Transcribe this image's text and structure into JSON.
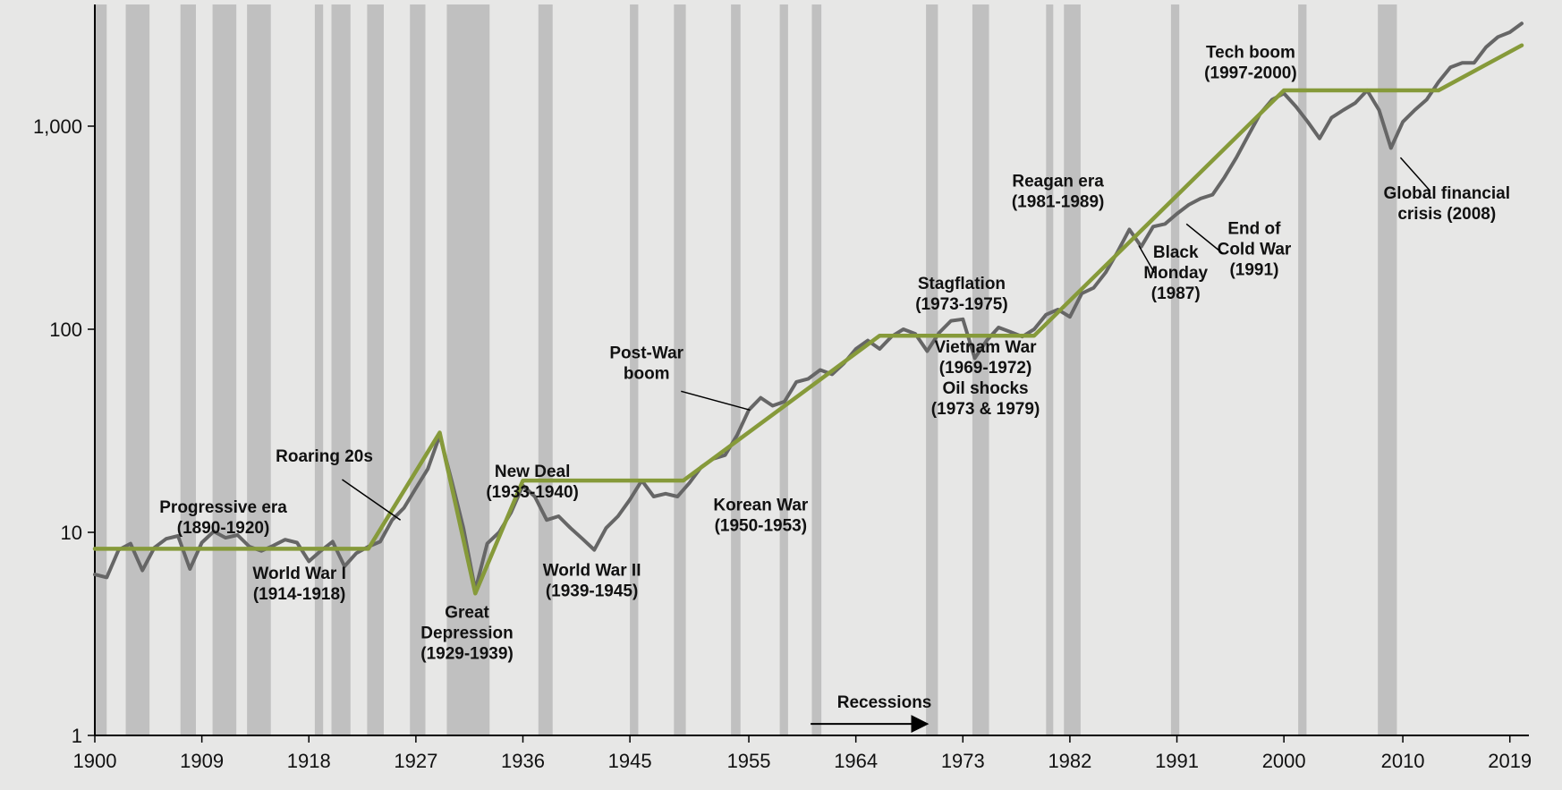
{
  "chart_data": {
    "type": "line",
    "title": "",
    "xlabel": "",
    "ylabel": "",
    "y_scale": "log",
    "ylim": [
      1,
      3500
    ],
    "xlim": [
      1900,
      2020
    ],
    "grid": false,
    "x_tick_labels": [
      "1900",
      "1909",
      "1918",
      "1927",
      "1936",
      "1945",
      "1955",
      "1964",
      "1973",
      "1982",
      "1991",
      "2000",
      "2010",
      "2019"
    ],
    "y_tick_labels": [
      {
        "value": 1,
        "label": "1"
      },
      {
        "value": 10,
        "label": "10"
      },
      {
        "value": 100,
        "label": "100"
      },
      {
        "value": 1000,
        "label": "1,000"
      }
    ],
    "recessions": [
      [
        1900.0,
        1901.0
      ],
      [
        1902.6,
        1904.6
      ],
      [
        1907.2,
        1908.5
      ],
      [
        1909.9,
        1911.9
      ],
      [
        1912.8,
        1914.8
      ],
      [
        1918.5,
        1919.2
      ],
      [
        1919.9,
        1921.5
      ],
      [
        1922.9,
        1924.3
      ],
      [
        1926.5,
        1927.8
      ],
      [
        1929.6,
        1933.2
      ],
      [
        1937.3,
        1938.5
      ],
      [
        1945.0,
        1945.7
      ],
      [
        1948.7,
        1949.7
      ],
      [
        1953.5,
        1954.3
      ],
      [
        1957.6,
        1958.3
      ],
      [
        1960.3,
        1961.1
      ],
      [
        1969.9,
        1970.9
      ],
      [
        1973.8,
        1975.2
      ],
      [
        1980.0,
        1980.6
      ],
      [
        1981.5,
        1982.9
      ],
      [
        1990.5,
        1991.2
      ],
      [
        2001.2,
        2001.9
      ],
      [
        2007.9,
        2009.5
      ]
    ],
    "series": [
      {
        "values": [
          [
            1900,
            6.2
          ],
          [
            1901,
            6.0
          ],
          [
            1902,
            8.2
          ],
          [
            1903,
            8.8
          ],
          [
            1904,
            6.5
          ],
          [
            1905,
            8.4
          ],
          [
            1906,
            9.3
          ],
          [
            1907,
            9.6
          ],
          [
            1908,
            6.6
          ],
          [
            1909,
            8.9
          ],
          [
            1910,
            10.1
          ],
          [
            1911,
            9.4
          ],
          [
            1912,
            9.7
          ],
          [
            1913,
            8.5
          ],
          [
            1914,
            8.1
          ],
          [
            1915,
            8.6
          ],
          [
            1916,
            9.2
          ],
          [
            1917,
            8.9
          ],
          [
            1918,
            7.2
          ],
          [
            1919,
            8.1
          ],
          [
            1920,
            9.0
          ],
          [
            1921,
            6.8
          ],
          [
            1922,
            7.9
          ],
          [
            1923,
            8.5
          ],
          [
            1924,
            9.0
          ],
          [
            1925,
            11.5
          ],
          [
            1926,
            13.2
          ],
          [
            1927,
            16.5
          ],
          [
            1928,
            20.5
          ],
          [
            1929,
            30.0
          ],
          [
            1930,
            18.0
          ],
          [
            1931,
            10.5
          ],
          [
            1932,
            5.2
          ],
          [
            1933,
            8.8
          ],
          [
            1934,
            10.0
          ],
          [
            1935,
            12.5
          ],
          [
            1936,
            17.0
          ],
          [
            1937,
            15.0
          ],
          [
            1938,
            11.5
          ],
          [
            1939,
            12.0
          ],
          [
            1940,
            10.5
          ],
          [
            1941,
            9.3
          ],
          [
            1942,
            8.2
          ],
          [
            1943,
            10.5
          ],
          [
            1944,
            12.0
          ],
          [
            1945,
            14.5
          ],
          [
            1946,
            18.0
          ],
          [
            1947,
            15.0
          ],
          [
            1948,
            15.5
          ],
          [
            1949,
            15.0
          ],
          [
            1950,
            17.5
          ],
          [
            1951,
            21.0
          ],
          [
            1952,
            23.0
          ],
          [
            1953,
            24.0
          ],
          [
            1954,
            30.0
          ],
          [
            1955,
            40.0
          ],
          [
            1956,
            46.0
          ],
          [
            1957,
            42.0
          ],
          [
            1958,
            44.0
          ],
          [
            1959,
            55.0
          ],
          [
            1960,
            57.0
          ],
          [
            1961,
            63.0
          ],
          [
            1962,
            60.0
          ],
          [
            1963,
            68.0
          ],
          [
            1964,
            80.0
          ],
          [
            1965,
            88.0
          ],
          [
            1966,
            80.0
          ],
          [
            1967,
            92.0
          ],
          [
            1968,
            100.0
          ],
          [
            1969,
            95.0
          ],
          [
            1970,
            78.0
          ],
          [
            1971,
            96.0
          ],
          [
            1972,
            110.0
          ],
          [
            1973,
            112.0
          ],
          [
            1974,
            72.0
          ],
          [
            1975,
            88.0
          ],
          [
            1976,
            102.0
          ],
          [
            1977,
            97.0
          ],
          [
            1978,
            92.0
          ],
          [
            1979,
            100.0
          ],
          [
            1980,
            118.0
          ],
          [
            1981,
            125.0
          ],
          [
            1982,
            115.0
          ],
          [
            1983,
            150.0
          ],
          [
            1984,
            160.0
          ],
          [
            1985,
            190.0
          ],
          [
            1986,
            240.0
          ],
          [
            1987,
            310.0
          ],
          [
            1988,
            255.0
          ],
          [
            1989,
            320.0
          ],
          [
            1990,
            330.0
          ],
          [
            1991,
            370.0
          ],
          [
            1992,
            410.0
          ],
          [
            1993,
            440.0
          ],
          [
            1994,
            460.0
          ],
          [
            1995,
            560.0
          ],
          [
            1996,
            700.0
          ],
          [
            1997,
            900.0
          ],
          [
            1998,
            1150.0
          ],
          [
            1999,
            1350.0
          ],
          [
            2000,
            1450.0
          ],
          [
            2001,
            1250.0
          ],
          [
            2002,
            1050.0
          ],
          [
            2003,
            870.0
          ],
          [
            2004,
            1100.0
          ],
          [
            2005,
            1200.0
          ],
          [
            2006,
            1300.0
          ],
          [
            2007,
            1500.0
          ],
          [
            2008,
            1200.0
          ],
          [
            2009,
            780.0
          ],
          [
            2010,
            1050.0
          ],
          [
            2011,
            1200.0
          ],
          [
            2012,
            1350.0
          ],
          [
            2013,
            1650.0
          ],
          [
            2014,
            1950.0
          ],
          [
            2015,
            2050.0
          ],
          [
            2016,
            2050.0
          ],
          [
            2017,
            2450.0
          ],
          [
            2018,
            2750.0
          ],
          [
            2019,
            2900.0
          ],
          [
            2020,
            3200.0
          ]
        ],
        "color": "#666666"
      },
      {
        "values": [
          [
            1900,
            8.3
          ],
          [
            1923,
            8.3
          ],
          [
            1929,
            31.0
          ],
          [
            1932,
            5.0
          ],
          [
            1936,
            18.0
          ],
          [
            1949.5,
            18.0
          ],
          [
            1966,
            93.0
          ],
          [
            1979,
            93.0
          ],
          [
            2000,
            1500.0
          ],
          [
            2013,
            1500.0
          ],
          [
            2020,
            2500.0
          ]
        ],
        "color": "#869a3a"
      }
    ],
    "recession_color": "#c0c0c0",
    "annotations": [
      {
        "lines": [
          "Progressive era",
          "(1890-1920)"
        ],
        "x": 1910.8,
        "y": 12.5
      },
      {
        "lines": [
          "World War I",
          "(1914-1918)"
        ],
        "x": 1917.2,
        "y": 5.9
      },
      {
        "lines": [
          "Roaring 20s"
        ],
        "x": 1919.3,
        "y": 22.3,
        "pointer": [
          [
            1920.8,
            18.2
          ],
          [
            1925.7,
            11.5
          ]
        ]
      },
      {
        "lines": [
          "Great",
          "Depression",
          "(1929-1939)"
        ],
        "x": 1931.3,
        "y": 3.8
      },
      {
        "lines": [
          "New Deal",
          "(1933-1940)"
        ],
        "x": 1936.8,
        "y": 18.8
      },
      {
        "lines": [
          "World War II",
          "(1939-1945)"
        ],
        "x": 1941.8,
        "y": 6.1
      },
      {
        "lines": [
          "Post-War",
          "boom"
        ],
        "x": 1946.4,
        "y": 72.0,
        "pointer": [
          [
            1949.3,
            49.5
          ],
          [
            1955.1,
            40.0
          ]
        ]
      },
      {
        "lines": [
          "Korean War",
          "(1950-1953)"
        ],
        "x": 1956.0,
        "y": 12.8
      },
      {
        "lines": [
          "Stagflation",
          "(1973-1975)"
        ],
        "x": 1972.9,
        "y": 158.0
      },
      {
        "lines": [
          "Vietnam War",
          "(1969-1972)",
          "Oil shocks",
          "(1973 & 1979)"
        ],
        "x": 1974.9,
        "y": 77.0
      },
      {
        "lines": [
          "Reagan era",
          "(1981-1989)"
        ],
        "x": 1981.0,
        "y": 505.0
      },
      {
        "lines": [
          "Black",
          "Monday",
          "(1987)"
        ],
        "x": 1990.9,
        "y": 225.0,
        "pointer": [
          [
            1989.1,
            190.0
          ],
          [
            1987.8,
            258.0
          ]
        ]
      },
      {
        "lines": [
          "End of",
          "Cold War",
          "(1991)"
        ],
        "x": 1997.5,
        "y": 295.0,
        "pointer": [
          [
            1994.9,
            235.0
          ],
          [
            1991.8,
            330.0
          ]
        ]
      },
      {
        "lines": [
          "Tech boom",
          "(1997-2000)"
        ],
        "x": 1997.2,
        "y": 2170.0
      },
      {
        "lines": [
          "Global financial",
          "crisis (2008)"
        ],
        "x": 2013.7,
        "y": 440.0,
        "pointer": [
          [
            2012.3,
            480.0
          ],
          [
            2009.8,
            700.0
          ]
        ]
      },
      {
        "lines": [
          "Recessions"
        ],
        "x": 1966.4,
        "y": 1.37,
        "arrow": [
          [
            1960.2,
            1.14
          ],
          [
            1970.0,
            1.14
          ]
        ]
      }
    ]
  }
}
